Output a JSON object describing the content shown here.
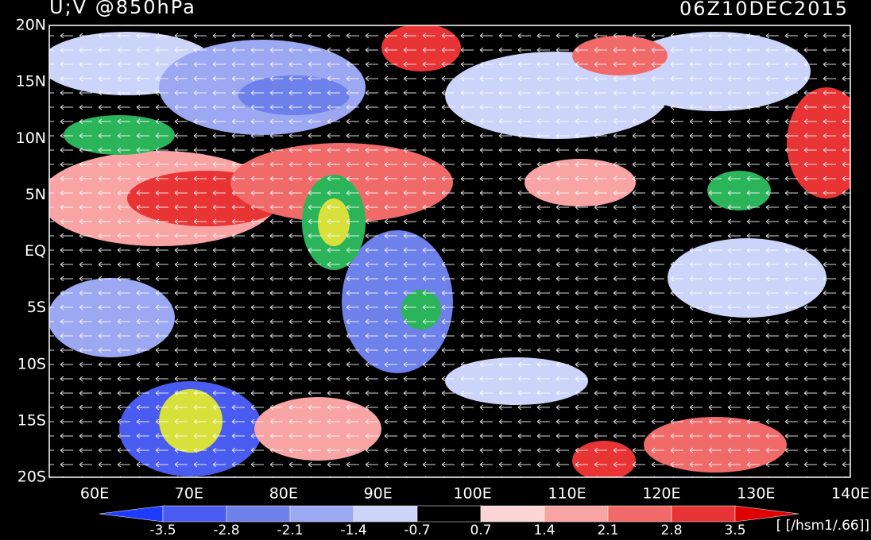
{
  "header": {
    "title": "U;V @850hPa",
    "time": "06Z10DEC2015"
  },
  "map": {
    "lat_labels": [
      "20N",
      "15N",
      "10N",
      "5N",
      "EQ",
      "5S",
      "10S",
      "15S",
      "20S"
    ],
    "lon_labels": [
      "60E",
      "70E",
      "80E",
      "90E",
      "100E",
      "110E",
      "120E",
      "130E",
      "140E"
    ]
  },
  "colorbar": {
    "labels": [
      "-3.5",
      "-2.8",
      "-2.1",
      "-1.4",
      "-0.7",
      "0.7",
      "1.4",
      "2.1",
      "2.8",
      "3.5"
    ],
    "colors": [
      "#1e3cff",
      "#4a5cf0",
      "#6e80ea",
      "#9ca8f2",
      "#ccd4fa",
      "#000000",
      "#fcd4d4",
      "#f8a4a4",
      "#f06a6a",
      "#e83434",
      "#e00000"
    ],
    "unit": "[ [/hsm1/.66]]"
  }
}
